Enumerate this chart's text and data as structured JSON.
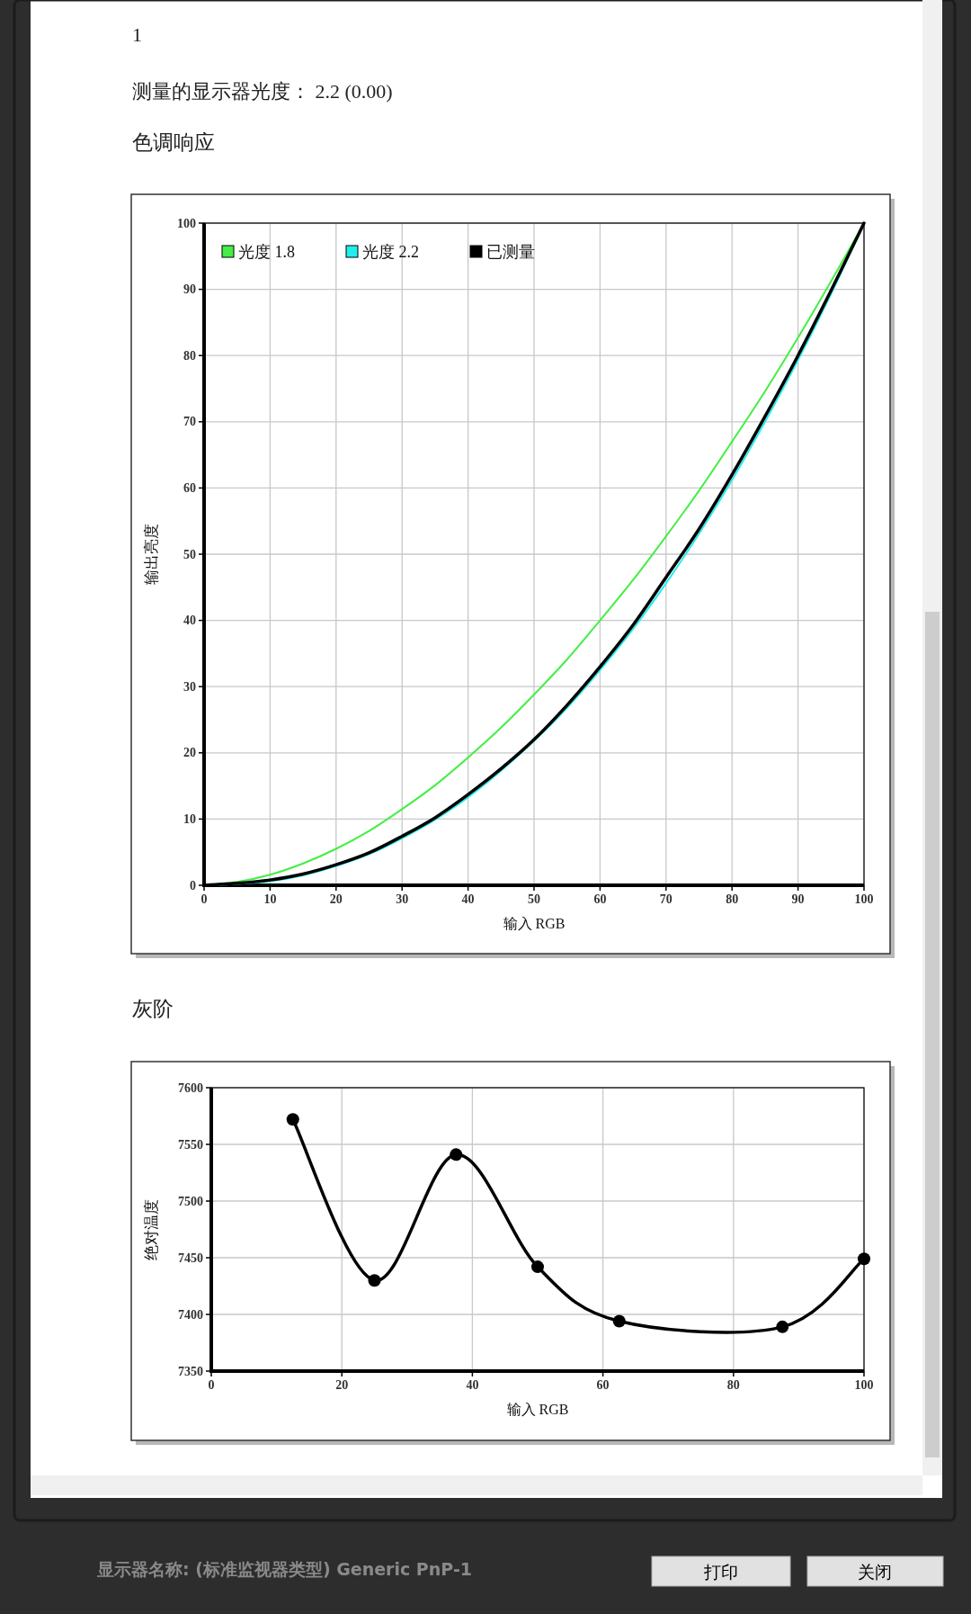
{
  "chart_data": [
    {
      "type": "line",
      "title": "色调响应",
      "annotations": [
        "1",
        "测量的显示器光度： 2.2 (0.00)"
      ],
      "xlabel": "输入 RGB",
      "ylabel": "输出亮度",
      "x": [
        0,
        5,
        10,
        15,
        20,
        25,
        30,
        35,
        40,
        45,
        50,
        55,
        60,
        65,
        70,
        75,
        80,
        85,
        90,
        95,
        100
      ],
      "xlim": [
        0,
        100
      ],
      "ylim": [
        0,
        100
      ],
      "xticks": [
        0,
        10,
        20,
        30,
        40,
        50,
        60,
        70,
        80,
        90,
        100
      ],
      "yticks": [
        0,
        10,
        20,
        30,
        40,
        50,
        60,
        70,
        80,
        90,
        100
      ],
      "grid": true,
      "legend": "top left",
      "series": [
        {
          "name": "光度 1.8",
          "color": "#44ee44",
          "values": [
            0,
            0.5,
            1.6,
            3.3,
            5.5,
            8.2,
            11.5,
            15.1,
            19.3,
            23.8,
            28.8,
            34.1,
            40,
            46.1,
            52.7,
            59.6,
            67,
            74.6,
            82.7,
            91.2,
            100
          ]
        },
        {
          "name": "光度 2.2",
          "color": "#22eeee",
          "values": [
            0,
            0.2,
            0.6,
            1.5,
            2.9,
            4.7,
            7.1,
            9.9,
            13.3,
            17.3,
            21.8,
            26.8,
            32.5,
            38.7,
            45.6,
            53.1,
            61.2,
            70,
            79.3,
            89.3,
            100
          ]
        },
        {
          "name": "已测量",
          "color": "#000000",
          "values": [
            0,
            0.3,
            0.8,
            1.7,
            3.1,
            4.9,
            7.4,
            10.2,
            13.7,
            17.6,
            22,
            27.2,
            33,
            39.3,
            46.5,
            53.8,
            62,
            70.8,
            80,
            89.8,
            100
          ]
        }
      ]
    },
    {
      "type": "line",
      "title": "灰阶",
      "annotations": [
        "显示器名称: (标准监视器类型) Generic PnP-1",
        "打印",
        "关闭"
      ],
      "xlabel": "输入 RGB",
      "ylabel": "绝对温度",
      "x": [
        12.5,
        25,
        37.5,
        50,
        62.5,
        87.5,
        100
      ],
      "values": [
        7572,
        7430,
        7541,
        7442,
        7394,
        7389,
        7449
      ],
      "color": "#000000",
      "marker": "circle",
      "xlim": [
        0,
        100
      ],
      "ylim": [
        7350,
        7600
      ],
      "xticks": [
        0,
        20,
        40,
        60,
        80,
        100
      ],
      "yticks": [
        7350,
        7400,
        7450,
        7500,
        7550,
        7600
      ],
      "grid": true
    }
  ]
}
